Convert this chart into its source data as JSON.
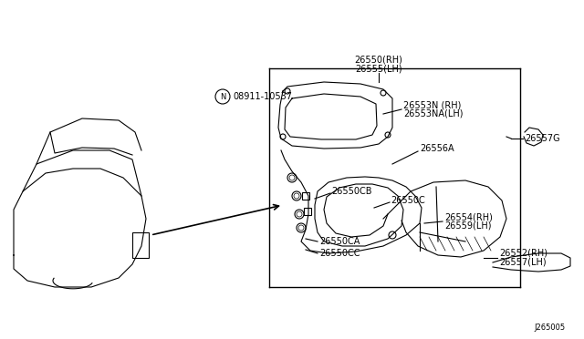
{
  "title": "",
  "diagram_id": "J265005",
  "background_color": "#ffffff",
  "line_color": "#000000",
  "parts": {
    "26550_RH": "26550(RH)",
    "26555_LH": "26555(LH)",
    "08911_10537": "08911-10537",
    "26553N_RH": "26553N (RH)",
    "26553NA_LH": "26553NA(LH)",
    "26556A": "26556A",
    "26557G": "26557G",
    "26550CB": "26550CB",
    "26550C": "26550C",
    "26554_RH": "26554(RH)",
    "26559_LH": "26559(LH)",
    "26550CA": "26550CA",
    "26550CC": "26550CC",
    "26552_RH": "26552(RH)",
    "26557_LH": "26557(LH)"
  },
  "font_size": 7,
  "line_width": 0.8
}
